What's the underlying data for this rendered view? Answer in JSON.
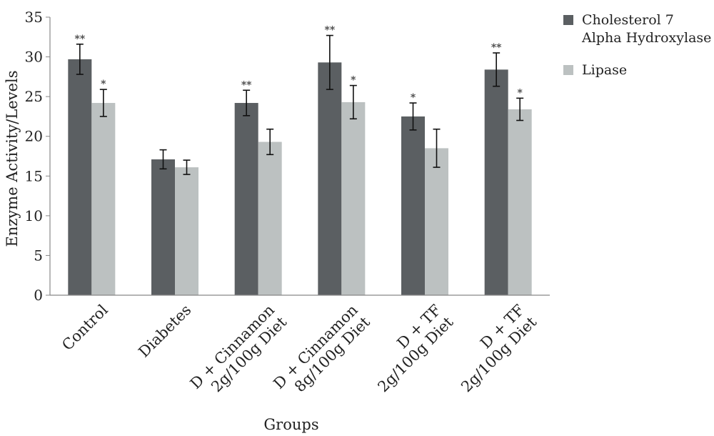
{
  "chart_data": {
    "type": "bar",
    "xlabel": "Groups",
    "ylabel": "Enzyme Activity/Levels",
    "ylim": [
      0,
      35
    ],
    "yticks": [
      0,
      5,
      10,
      15,
      20,
      25,
      30,
      35
    ],
    "categories": [
      [
        "Control"
      ],
      [
        "Diabetes"
      ],
      [
        "D + Cinnamon",
        "2g/100g Diet"
      ],
      [
        "D + Cinnamon",
        "8g/100g Diet"
      ],
      [
        "D + TF",
        "2g/100g Diet"
      ],
      [
        "D + TF",
        "2g/100g Diet"
      ]
    ],
    "series": [
      {
        "name": "Cholesterol 7 Alpha Hydroxylase",
        "legend_lines": [
          "Cholesterol 7",
          "Alpha Hydroxylase"
        ],
        "color": "#5b5f62",
        "values": [
          29.7,
          17.1,
          24.2,
          29.3,
          22.5,
          28.4
        ],
        "errors": [
          1.9,
          1.2,
          1.6,
          3.4,
          1.7,
          2.1
        ],
        "significance": [
          "**",
          "",
          "**",
          "**",
          "*",
          "**"
        ]
      },
      {
        "name": "Lipase",
        "legend_lines": [
          "Lipase"
        ],
        "color": "#bcc1c1",
        "values": [
          24.2,
          16.1,
          19.3,
          24.3,
          18.5,
          23.4
        ],
        "errors": [
          1.7,
          0.9,
          1.6,
          2.1,
          2.4,
          1.4
        ],
        "significance": [
          "*",
          "",
          "",
          "*",
          "",
          "*"
        ]
      }
    ],
    "legend_position": "top-right",
    "grid": false
  }
}
